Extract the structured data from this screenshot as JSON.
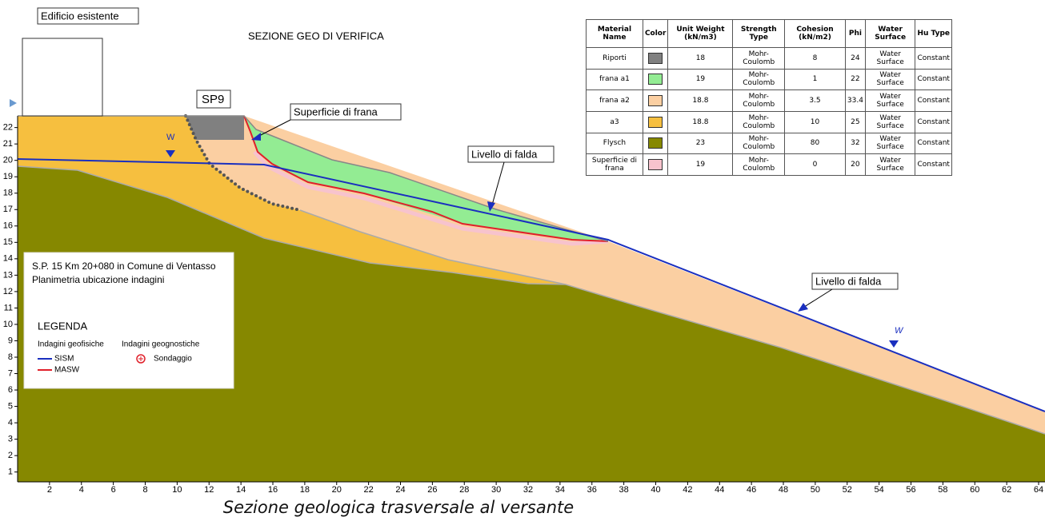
{
  "labels": {
    "building": "Edificio esistente",
    "title": "SEZIONE GEO DI VERIFICA",
    "borehole": "SP9",
    "slip_surface": "Superficie di frana",
    "water_table_1": "Livello di falda",
    "water_table_2": "Livello di falda",
    "water_mark_1": "W",
    "water_mark_2": "W",
    "caption": "Sezione geologica trasversale al versante"
  },
  "legend": {
    "lines": [
      "S.P. 15 Km 20+080 in Comune di Ventasso",
      "Planimetria ubicazione indagini"
    ],
    "title": "LEGENDA",
    "groups": [
      "Indagini geofisiche",
      "Indagini geognostiche"
    ],
    "items": [
      {
        "label": "SISM",
        "color": "#1a2fbf"
      },
      {
        "label": "MASW",
        "color": "#e0202a"
      },
      {
        "label": "Sondaggio",
        "color": "#e0202a"
      }
    ]
  },
  "table": {
    "columns": [
      "Material Name",
      "Color",
      "Unit Weight (kN/m3)",
      "Strength Type",
      "Cohesion (kN/m2)",
      "Phi",
      "Water Surface",
      "Hu Type"
    ],
    "rows": [
      {
        "name": "Riporti",
        "color": "#808080",
        "unit_weight": 18,
        "strength": "Mohr-Coulomb",
        "cohesion": 8,
        "phi": 24,
        "water": "Water Surface",
        "hu": "Constant"
      },
      {
        "name": "frana a1",
        "color": "#93ec93",
        "unit_weight": 19,
        "strength": "Mohr-Coulomb",
        "cohesion": 1,
        "phi": 22,
        "water": "Water Surface",
        "hu": "Constant"
      },
      {
        "name": "frana a2",
        "color": "#fbcfa2",
        "unit_weight": 18.8,
        "strength": "Mohr-Coulomb",
        "cohesion": 3.5,
        "phi": 33.4,
        "water": "Water Surface",
        "hu": "Constant"
      },
      {
        "name": "a3",
        "color": "#f6bf3f",
        "unit_weight": 18.8,
        "strength": "Mohr-Coulomb",
        "cohesion": 10,
        "phi": 25,
        "water": "Water Surface",
        "hu": "Constant"
      },
      {
        "name": "Flysch",
        "color": "#868800",
        "unit_weight": 23,
        "strength": "Mohr-Coulomb",
        "cohesion": 80,
        "phi": 32,
        "water": "Water Surface",
        "hu": "Constant"
      },
      {
        "name": "Superficie di frana",
        "color": "#f7c3cd",
        "unit_weight": 19,
        "strength": "Mohr-Coulomb",
        "cohesion": 0,
        "phi": 20,
        "water": "Water Surface",
        "hu": "Constant"
      }
    ]
  },
  "axes": {
    "xlim": [
      0,
      64.4
    ],
    "ylim": [
      0.4,
      23.2
    ],
    "xticks": [
      2,
      4,
      6,
      8,
      10,
      12,
      14,
      16,
      18,
      20,
      22,
      24,
      26,
      28,
      30,
      32,
      34,
      36,
      38,
      40,
      42,
      44,
      46,
      48,
      50,
      52,
      54,
      56,
      58,
      60,
      62,
      64
    ],
    "yticks": [
      1,
      2,
      3,
      4,
      5,
      6,
      7,
      8,
      9,
      10,
      11,
      12,
      13,
      14,
      15,
      16,
      17,
      18,
      19,
      20,
      21,
      22
    ]
  }
}
